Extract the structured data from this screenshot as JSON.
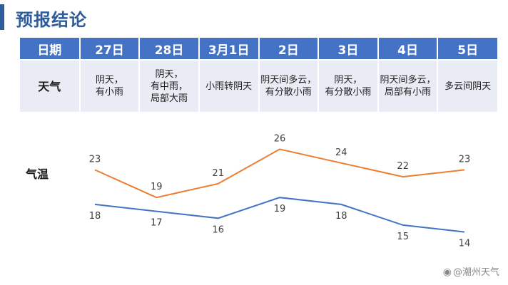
{
  "title": "预报结论",
  "table": {
    "header_label": "日期",
    "weather_label": "天气",
    "days": [
      "27日",
      "28日",
      "3月1日",
      "2日",
      "3日",
      "4日",
      "5日"
    ],
    "weather": [
      "阴天，\n有小雨",
      "阴天，\n有中雨，\n局部大雨",
      "小雨转阴天",
      "阴天间多云，\n有分散小雨",
      "阴天，\n有分散小雨",
      "阴天间多云，\n局部有小雨",
      "多云间阴天"
    ]
  },
  "temperature_label": "气温",
  "chart_data": {
    "type": "line",
    "categories": [
      "27日",
      "28日",
      "3月1日",
      "2日",
      "3日",
      "4日",
      "5日"
    ],
    "series": [
      {
        "values": [
          23,
          19,
          21,
          26,
          24,
          22,
          23
        ],
        "color": "#ed7d31"
      },
      {
        "values": [
          18,
          17,
          16,
          19,
          18,
          15,
          14
        ],
        "color": "#4472c4"
      }
    ],
    "ylim": [
      12,
      28
    ],
    "grid": false,
    "legend": "none"
  },
  "watermark": {
    "logo_icon": "weibo-icon",
    "text": "@潮州天气"
  }
}
